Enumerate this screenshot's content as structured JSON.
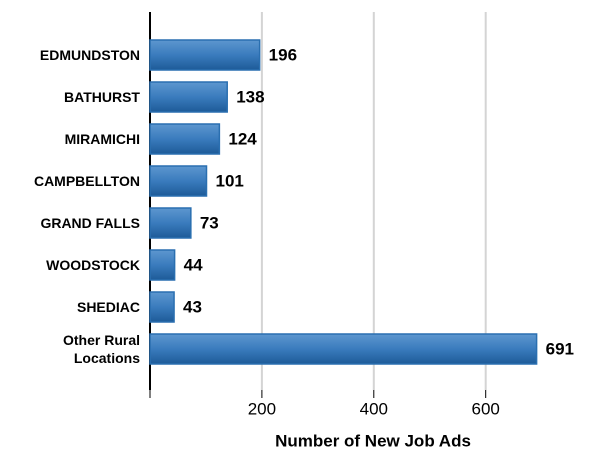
{
  "chart_data": {
    "type": "bar",
    "orientation": "horizontal",
    "xlabel": "Number of New Job Ads",
    "categories": [
      "EDMUNDSTON",
      "BATHURST",
      "MIRAMICHI",
      "CAMPBELLTON",
      "GRAND FALLS",
      "WOODSTOCK",
      "SHEDIAC",
      "Other Rural Locations"
    ],
    "values": [
      196,
      138,
      124,
      101,
      73,
      44,
      43,
      691
    ],
    "color": "#2a6fb0",
    "xlim": [
      0,
      790
    ],
    "xticks": [
      200,
      400,
      600
    ],
    "grid": true
  }
}
